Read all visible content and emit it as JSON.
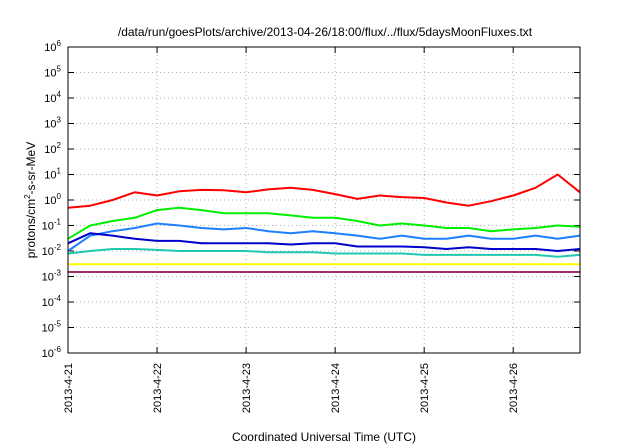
{
  "chart_data": {
    "type": "line",
    "title": "/data/run/goesPlots/archive/2013-04-26/18:00/flux/../flux/5daysMoonFluxes.txt",
    "xlabel": "Coordinated Universal Time (UTC)",
    "ylabel": {
      "prefix": "protons/cm",
      "sup": "2",
      "suffix": "-s-sr-MeV"
    },
    "x_scale": "date",
    "xlim": [
      "2013-04-21T00:00",
      "2013-04-26T18:00"
    ],
    "x_ticks": [
      "2013-4-21",
      "2013-4-22",
      "2013-4-23",
      "2013-4-24",
      "2013-4-25",
      "2013-4-26"
    ],
    "y_scale": "log",
    "ylim": [
      1e-06,
      1000000.0
    ],
    "y_ticks": [
      {
        "base": "10",
        "exp": "-6",
        "value": 1e-06
      },
      {
        "base": "10",
        "exp": "-5",
        "value": 1e-05
      },
      {
        "base": "10",
        "exp": "-4",
        "value": 0.0001
      },
      {
        "base": "10",
        "exp": "-3",
        "value": 0.001
      },
      {
        "base": "10",
        "exp": "-2",
        "value": 0.01
      },
      {
        "base": "10",
        "exp": "-1",
        "value": 0.1
      },
      {
        "base": "10",
        "exp": "0",
        "value": 1
      },
      {
        "base": "10",
        "exp": "1",
        "value": 10
      },
      {
        "base": "10",
        "exp": "2",
        "value": 100
      },
      {
        "base": "10",
        "exp": "3",
        "value": 1000
      },
      {
        "base": "10",
        "exp": "4",
        "value": 10000
      },
      {
        "base": "10",
        "exp": "5",
        "value": 100000
      },
      {
        "base": "10",
        "exp": "6",
        "value": 1000000
      }
    ],
    "grid": true,
    "legend": "none",
    "series": [
      {
        "color": "#ff0000",
        "x": [
          "2013-04-21T00:00",
          "2013-04-21T06:00",
          "2013-04-21T12:00",
          "2013-04-21T18:00",
          "2013-04-22T00:00",
          "2013-04-22T06:00",
          "2013-04-22T12:00",
          "2013-04-22T18:00",
          "2013-04-23T00:00",
          "2013-04-23T06:00",
          "2013-04-23T12:00",
          "2013-04-23T18:00",
          "2013-04-24T00:00",
          "2013-04-24T06:00",
          "2013-04-24T12:00",
          "2013-04-24T18:00",
          "2013-04-25T00:00",
          "2013-04-25T06:00",
          "2013-04-25T12:00",
          "2013-04-25T18:00",
          "2013-04-26T00:00",
          "2013-04-26T06:00",
          "2013-04-26T12:00",
          "2013-04-26T18:00"
        ],
        "y": [
          0.5,
          0.6,
          1.0,
          2.0,
          1.5,
          2.2,
          2.5,
          2.4,
          2.0,
          2.6,
          3.0,
          2.5,
          1.7,
          1.1,
          1.5,
          1.3,
          1.2,
          0.8,
          0.6,
          0.9,
          1.5,
          3.0,
          10,
          2.0
        ]
      },
      {
        "color": "#00ee00",
        "x": [
          "2013-04-21T00:00",
          "2013-04-21T06:00",
          "2013-04-21T12:00",
          "2013-04-21T18:00",
          "2013-04-22T00:00",
          "2013-04-22T06:00",
          "2013-04-22T12:00",
          "2013-04-22T18:00",
          "2013-04-23T00:00",
          "2013-04-23T06:00",
          "2013-04-23T12:00",
          "2013-04-23T18:00",
          "2013-04-24T00:00",
          "2013-04-24T06:00",
          "2013-04-24T12:00",
          "2013-04-24T18:00",
          "2013-04-25T00:00",
          "2013-04-25T06:00",
          "2013-04-25T12:00",
          "2013-04-25T18:00",
          "2013-04-26T00:00",
          "2013-04-26T06:00",
          "2013-04-26T12:00",
          "2013-04-26T18:00"
        ],
        "y": [
          0.03,
          0.1,
          0.15,
          0.2,
          0.4,
          0.5,
          0.4,
          0.3,
          0.3,
          0.3,
          0.25,
          0.2,
          0.2,
          0.15,
          0.1,
          0.12,
          0.1,
          0.08,
          0.08,
          0.06,
          0.07,
          0.08,
          0.1,
          0.09
        ]
      },
      {
        "color": "#1e7fff",
        "x": [
          "2013-04-21T00:00",
          "2013-04-21T06:00",
          "2013-04-21T12:00",
          "2013-04-21T18:00",
          "2013-04-22T00:00",
          "2013-04-22T06:00",
          "2013-04-22T12:00",
          "2013-04-22T18:00",
          "2013-04-23T00:00",
          "2013-04-23T06:00",
          "2013-04-23T12:00",
          "2013-04-23T18:00",
          "2013-04-24T00:00",
          "2013-04-24T06:00",
          "2013-04-24T12:00",
          "2013-04-24T18:00",
          "2013-04-25T00:00",
          "2013-04-25T06:00",
          "2013-04-25T12:00",
          "2013-04-25T18:00",
          "2013-04-26T00:00",
          "2013-04-26T06:00",
          "2013-04-26T12:00",
          "2013-04-26T18:00"
        ],
        "y": [
          0.01,
          0.04,
          0.06,
          0.08,
          0.12,
          0.1,
          0.08,
          0.07,
          0.08,
          0.06,
          0.05,
          0.06,
          0.05,
          0.04,
          0.03,
          0.04,
          0.03,
          0.03,
          0.04,
          0.03,
          0.03,
          0.04,
          0.03,
          0.04
        ]
      },
      {
        "color": "#0000cc",
        "x": [
          "2013-04-21T00:00",
          "2013-04-21T06:00",
          "2013-04-21T12:00",
          "2013-04-21T18:00",
          "2013-04-22T00:00",
          "2013-04-22T06:00",
          "2013-04-22T12:00",
          "2013-04-22T18:00",
          "2013-04-23T00:00",
          "2013-04-23T06:00",
          "2013-04-23T12:00",
          "2013-04-23T18:00",
          "2013-04-24T00:00",
          "2013-04-24T06:00",
          "2013-04-24T12:00",
          "2013-04-24T18:00",
          "2013-04-25T00:00",
          "2013-04-25T06:00",
          "2013-04-25T12:00",
          "2013-04-25T18:00",
          "2013-04-26T00:00",
          "2013-04-26T06:00",
          "2013-04-26T12:00",
          "2013-04-26T18:00"
        ],
        "y": [
          0.02,
          0.05,
          0.04,
          0.03,
          0.025,
          0.025,
          0.02,
          0.02,
          0.02,
          0.02,
          0.018,
          0.02,
          0.02,
          0.015,
          0.015,
          0.015,
          0.014,
          0.012,
          0.014,
          0.012,
          0.012,
          0.012,
          0.01,
          0.012
        ]
      },
      {
        "color": "#20c8b0",
        "x": [
          "2013-04-21T00:00",
          "2013-04-21T06:00",
          "2013-04-21T12:00",
          "2013-04-21T18:00",
          "2013-04-22T00:00",
          "2013-04-22T06:00",
          "2013-04-22T12:00",
          "2013-04-22T18:00",
          "2013-04-23T00:00",
          "2013-04-23T06:00",
          "2013-04-23T12:00",
          "2013-04-23T18:00",
          "2013-04-24T00:00",
          "2013-04-24T06:00",
          "2013-04-24T12:00",
          "2013-04-24T18:00",
          "2013-04-25T00:00",
          "2013-04-25T06:00",
          "2013-04-25T12:00",
          "2013-04-25T18:00",
          "2013-04-26T00:00",
          "2013-04-26T06:00",
          "2013-04-26T12:00",
          "2013-04-26T18:00"
        ],
        "y": [
          0.008,
          0.01,
          0.012,
          0.012,
          0.011,
          0.01,
          0.01,
          0.01,
          0.01,
          0.009,
          0.009,
          0.009,
          0.008,
          0.008,
          0.008,
          0.008,
          0.007,
          0.007,
          0.007,
          0.007,
          0.007,
          0.007,
          0.006,
          0.007
        ]
      },
      {
        "color": "#ffff00",
        "x": [
          "2013-04-21T00:00",
          "2013-04-21T06:00",
          "2013-04-21T12:00",
          "2013-04-21T18:00",
          "2013-04-22T00:00",
          "2013-04-22T06:00",
          "2013-04-22T12:00",
          "2013-04-22T18:00",
          "2013-04-23T00:00",
          "2013-04-23T06:00",
          "2013-04-23T12:00",
          "2013-04-23T18:00",
          "2013-04-24T00:00",
          "2013-04-24T06:00",
          "2013-04-24T12:00",
          "2013-04-24T18:00",
          "2013-04-25T00:00",
          "2013-04-25T06:00",
          "2013-04-25T12:00",
          "2013-04-25T18:00",
          "2013-04-26T00:00",
          "2013-04-26T06:00",
          "2013-04-26T12:00",
          "2013-04-26T18:00"
        ],
        "y": [
          0.003,
          0.003,
          0.003,
          0.003,
          0.003,
          0.003,
          0.003,
          0.003,
          0.003,
          0.003,
          0.003,
          0.003,
          0.003,
          0.003,
          0.003,
          0.003,
          0.003,
          0.003,
          0.003,
          0.003,
          0.003,
          0.003,
          0.003,
          0.003
        ]
      },
      {
        "color": "#a0306a",
        "x": [
          "2013-04-21T00:00",
          "2013-04-21T06:00",
          "2013-04-21T12:00",
          "2013-04-21T18:00",
          "2013-04-22T00:00",
          "2013-04-22T06:00",
          "2013-04-22T12:00",
          "2013-04-22T18:00",
          "2013-04-23T00:00",
          "2013-04-23T06:00",
          "2013-04-23T12:00",
          "2013-04-23T18:00",
          "2013-04-24T00:00",
          "2013-04-24T06:00",
          "2013-04-24T12:00",
          "2013-04-24T18:00",
          "2013-04-25T00:00",
          "2013-04-25T06:00",
          "2013-04-25T12:00",
          "2013-04-25T18:00",
          "2013-04-26T00:00",
          "2013-04-26T06:00",
          "2013-04-26T12:00",
          "2013-04-26T18:00"
        ],
        "y": [
          0.0015,
          0.0015,
          0.0015,
          0.0015,
          0.0015,
          0.0015,
          0.0015,
          0.0015,
          0.0015,
          0.0015,
          0.0015,
          0.0015,
          0.0015,
          0.0015,
          0.0015,
          0.0015,
          0.0015,
          0.0015,
          0.0015,
          0.0015,
          0.0015,
          0.0015,
          0.0015,
          0.0015
        ]
      }
    ]
  }
}
